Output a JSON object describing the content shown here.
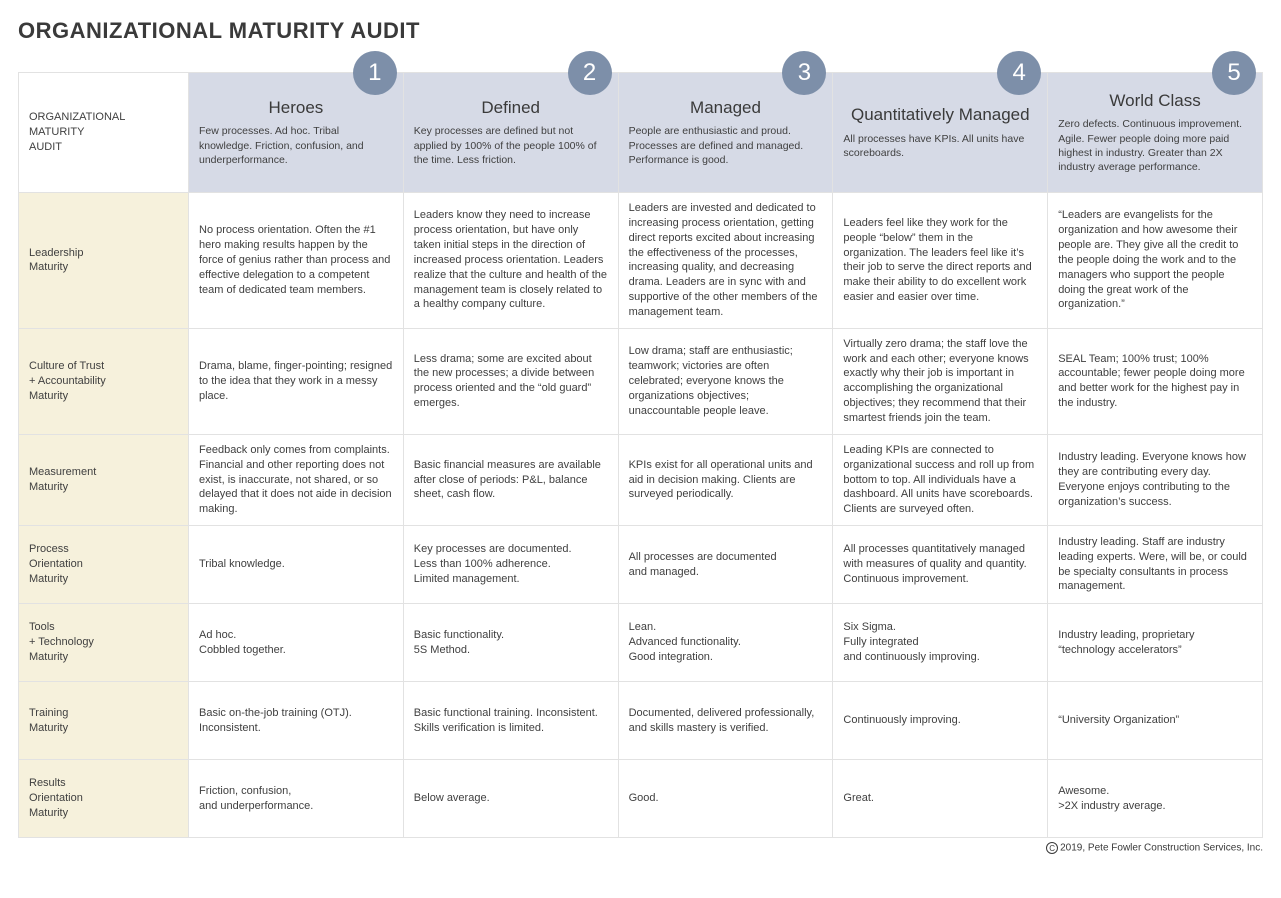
{
  "title": "ORGANIZATIONAL MATURITY AUDIT",
  "corner_label": "ORGANIZATIONAL\nMATURITY\nAUDIT",
  "colors": {
    "header_bg": "#d6dae6",
    "row_label_bg": "#f6f1dc",
    "row_label_text": "#7d8fa9",
    "badge_bg": "#7d8fa9",
    "badge_text": "#ffffff",
    "border": "#e2e2e2",
    "title_text": "#3a3a3a",
    "body_text": "#3f3f3f"
  },
  "levels": [
    {
      "num": "1",
      "title": "Heroes",
      "desc": "Few processes. Ad hoc. Tribal knowledge. Friction, confusion, and underperformance."
    },
    {
      "num": "2",
      "title": "Defined",
      "desc": "Key processes are defined but not applied by 100% of the people 100% of the time. Less friction."
    },
    {
      "num": "3",
      "title": "Managed",
      "desc": "People are enthusiastic and proud. Processes are defined and managed. Performance is good."
    },
    {
      "num": "4",
      "title": "Quantitatively Managed",
      "desc": "All processes have KPIs. All units have scoreboards."
    },
    {
      "num": "5",
      "title": "World Class",
      "desc": "Zero defects. Continuous improvement. Agile. Fewer people doing more paid highest in industry. Greater than 2X industry average performance."
    }
  ],
  "rows": [
    {
      "label": "Leadership\nMaturity",
      "tall": true,
      "cells": [
        "No process orientation. Often the #1 hero making results happen by the force of genius rather than process and effective delegation to a competent team of dedicated team members.",
        "Leaders know they need to increase process orientation, but have only taken initial steps in the direction of increased process orientation. Leaders realize that the culture and health of the management team is closely related to a healthy company culture.",
        "Leaders are invested and dedicated to increasing process orientation, getting direct reports excited about increasing the effectiveness of the processes, increasing quality, and decreasing drama. Leaders are in sync with and supportive of the other members of the management team.",
        "Leaders feel like they work for the people “below” them in the organization. The leaders feel like it’s their job to serve the direct reports and make their ability to do excellent work easier and easier over time.",
        "“Leaders are evangelists for the organization and how awesome their people are. They give all the credit to the people doing the work and to the managers who support the people doing the great work of the organization.”"
      ]
    },
    {
      "label": "Culture of Trust\n+ Accountability\nMaturity",
      "tall": false,
      "cells": [
        "Drama, blame, finger-pointing; resigned to the idea that they work in a messy place.",
        "Less drama; some are excited about the new processes; a divide between process oriented and the “old guard” emerges.",
        "Low drama; staff are enthusiastic; teamwork; victories are often celebrated; everyone knows the organizations objectives; unaccountable people leave.",
        "Virtually zero drama; the staff love the work and each other; everyone knows exactly why their job is important in accomplishing the organizational objectives; they recommend that their smartest friends join the team.",
        "SEAL Team; 100% trust; 100% accountable; fewer people doing more and better work for the highest pay in the industry."
      ]
    },
    {
      "label": "Measurement\nMaturity",
      "tall": false,
      "cells": [
        "Feedback only comes from complaints. Financial and other reporting does not exist, is inaccurate, not shared, or so delayed that it does not aide in decision making.",
        "Basic financial measures are available after close of periods: P&L, balance sheet, cash flow.",
        "KPIs exist for all operational units and aid in decision making. Clients are surveyed periodically.",
        "Leading KPIs are connected to organizational success and roll up from bottom to top. All individuals have a dashboard. All units have scoreboards. Clients are surveyed often.",
        "Industry leading. Everyone knows how they are contributing every day. Everyone enjoys contributing to the organization’s success."
      ]
    },
    {
      "label": "Process\nOrientation\nMaturity",
      "tall": false,
      "cells": [
        "Tribal knowledge.",
        "Key processes are documented.\nLess than 100% adherence.\nLimited management.",
        "All processes are documented\nand managed.",
        "All processes quantitatively managed with measures of quality and quantity. Continuous improvement.",
        "Industry leading. Staff are industry leading experts. Were, will be, or could be specialty consultants in process management."
      ]
    },
    {
      "label": "Tools\n+ Technology\nMaturity",
      "tall": false,
      "cells": [
        "Ad hoc.\nCobbled together.",
        "Basic functionality.\n5S Method.",
        "Lean.\nAdvanced functionality.\nGood integration.",
        "Six Sigma.\nFully integrated\nand continuously improving.",
        "Industry leading, proprietary “technology accelerators”"
      ]
    },
    {
      "label": "Training\nMaturity",
      "tall": false,
      "cells": [
        "Basic on-the-job training (OTJ). Inconsistent.",
        "Basic functional training. Inconsistent. Skills verification is limited.",
        "Documented, delivered professionally, and skills mastery is verified.",
        "Continuously improving.",
        "“University Organization”"
      ]
    },
    {
      "label": "Results\nOrientation\nMaturity",
      "tall": false,
      "cells": [
        "Friction, confusion,\nand underperformance.",
        "Below average.",
        "Good.",
        "Great.",
        "Awesome.\n>2X industry average."
      ]
    }
  ],
  "footer": "2019, Pete Fowler Construction Services, Inc."
}
